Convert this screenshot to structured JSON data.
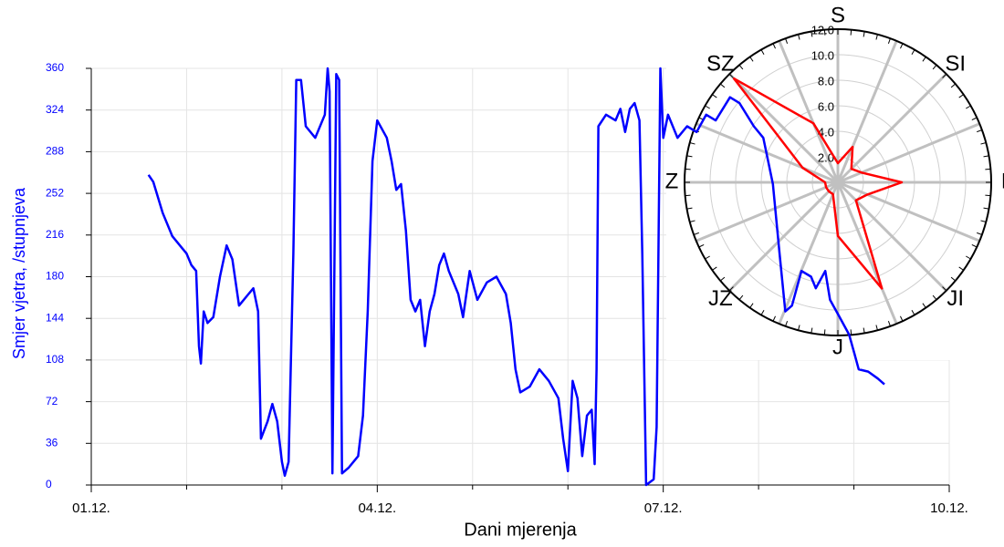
{
  "chart_data": [
    {
      "type": "line",
      "y_label": "Smjer vjetra, /stupnjeva",
      "x_label": "Dani mjerenja",
      "color": "#0000ff",
      "grid": true,
      "xlim": [
        1,
        10
      ],
      "xticks": [
        {
          "value": 1,
          "label": "01.12."
        },
        {
          "value": 4,
          "label": "04.12."
        },
        {
          "value": 7,
          "label": "07.12."
        },
        {
          "value": 10,
          "label": "10.12."
        }
      ],
      "x_minor_ticks": [
        2,
        3,
        5,
        6,
        8,
        9
      ],
      "ylim": [
        0,
        360
      ],
      "yticks": [
        0,
        36,
        72,
        108,
        144,
        180,
        216,
        252,
        288,
        324,
        360
      ],
      "x": [
        1.6,
        1.65,
        1.75,
        1.85,
        1.95,
        2.0,
        2.05,
        2.1,
        2.13,
        2.15,
        2.18,
        2.22,
        2.28,
        2.35,
        2.42,
        2.48,
        2.55,
        2.65,
        2.7,
        2.75,
        2.78,
        2.85,
        2.9,
        2.95,
        3.0,
        3.03,
        3.07,
        3.12,
        3.15,
        3.2,
        3.25,
        3.35,
        3.45,
        3.48,
        3.5,
        3.53,
        3.57,
        3.6,
        3.63,
        3.7,
        3.8,
        3.85,
        3.9,
        3.95,
        4.0,
        4.1,
        4.15,
        4.2,
        4.25,
        4.3,
        4.35,
        4.4,
        4.45,
        4.5,
        4.55,
        4.6,
        4.65,
        4.7,
        4.75,
        4.85,
        4.9,
        4.97,
        5.05,
        5.15,
        5.25,
        5.35,
        5.4,
        5.45,
        5.5,
        5.6,
        5.7,
        5.8,
        5.9,
        5.95,
        6.0,
        6.05,
        6.1,
        6.15,
        6.2,
        6.25,
        6.28,
        6.3,
        6.32,
        6.4,
        6.5,
        6.55,
        6.6,
        6.65,
        6.7,
        6.75,
        6.78,
        6.82,
        6.9,
        6.93,
        6.97,
        7.0,
        7.05,
        7.15,
        7.25,
        7.35,
        7.45,
        7.55,
        7.7,
        7.8,
        7.95,
        8.05,
        8.15,
        8.22,
        8.28,
        8.35,
        8.45,
        8.55,
        8.6,
        8.7,
        8.75,
        8.85,
        8.95,
        9.0,
        9.05,
        9.15,
        9.25,
        9.32
      ],
      "values": [
        268,
        262,
        235,
        215,
        205,
        200,
        190,
        185,
        120,
        105,
        150,
        140,
        145,
        180,
        207,
        195,
        155,
        165,
        170,
        150,
        40,
        55,
        70,
        55,
        20,
        8,
        20,
        200,
        350,
        350,
        310,
        300,
        320,
        360,
        340,
        10,
        355,
        350,
        10,
        15,
        25,
        60,
        150,
        280,
        315,
        300,
        280,
        255,
        260,
        220,
        160,
        150,
        160,
        120,
        150,
        165,
        190,
        200,
        185,
        165,
        145,
        185,
        160,
        175,
        180,
        165,
        140,
        100,
        80,
        85,
        100,
        90,
        75,
        40,
        12,
        90,
        75,
        25,
        60,
        65,
        18,
        100,
        310,
        320,
        315,
        325,
        305,
        325,
        330,
        315,
        200,
        0,
        5,
        50,
        360,
        300,
        320,
        300,
        310,
        305,
        320,
        315,
        335,
        330,
        310,
        300,
        260,
        200,
        150,
        155,
        185,
        180,
        170,
        185,
        160,
        145,
        130,
        115,
        100,
        98,
        92,
        87
      ]
    },
    {
      "type": "polar",
      "categories": [
        "S",
        null,
        "SI",
        null,
        "I",
        null,
        "JI",
        null,
        "J",
        null,
        "JZ",
        null,
        "Z",
        null,
        "SZ",
        null
      ],
      "values": [
        1.5,
        3.0,
        1.5,
        2.0,
        5.0,
        2.5,
        2.0,
        9.0,
        4.2,
        1.0,
        1.0,
        1.0,
        1.0,
        3.0,
        11.5,
        5.0
      ],
      "color": "#ff0000",
      "rlim": [
        0,
        12
      ],
      "rticks": [
        {
          "value": 2,
          "label": "2.0"
        },
        {
          "value": 4,
          "label": "4.0"
        },
        {
          "value": 6,
          "label": "6.0"
        },
        {
          "value": 8,
          "label": "8.0"
        },
        {
          "value": 10,
          "label": "10.0"
        },
        {
          "value": 12,
          "label": "12.0"
        }
      ]
    }
  ]
}
